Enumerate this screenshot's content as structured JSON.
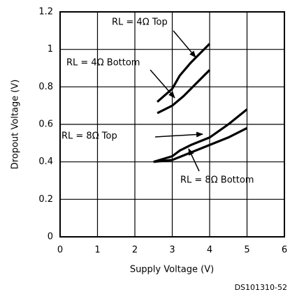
{
  "chart_data": {
    "type": "line",
    "xlabel": "Supply Voltage (V)",
    "ylabel": "Dropout Voltage (V)",
    "footer": "DS101310-52",
    "xlim": [
      0,
      6
    ],
    "xticks": [
      0,
      1,
      2,
      3,
      4,
      5,
      6
    ],
    "ylim": [
      0,
      1.2
    ],
    "yticks": [
      0,
      0.2,
      0.4,
      0.6,
      0.8,
      1,
      1.2
    ],
    "grid": true,
    "color": "#000000",
    "series": [
      {
        "name": "RL = 4Ω Top",
        "x": [
          2.6,
          3.0,
          3.2,
          3.5,
          4.0
        ],
        "values": [
          0.72,
          0.79,
          0.86,
          0.93,
          1.03
        ]
      },
      {
        "name": "RL = 4Ω Bottom",
        "x": [
          2.6,
          3.0,
          3.3,
          3.6,
          4.0
        ],
        "values": [
          0.66,
          0.7,
          0.75,
          0.81,
          0.89
        ]
      },
      {
        "name": "RL = 8Ω Top",
        "x": [
          2.5,
          3.0,
          3.2,
          3.5,
          4.0,
          4.5,
          5.0
        ],
        "values": [
          0.4,
          0.43,
          0.46,
          0.49,
          0.53,
          0.6,
          0.68
        ]
      },
      {
        "name": "RL = 8Ω Bottom",
        "x": [
          2.5,
          3.0,
          3.5,
          4.0,
          4.5,
          5.0
        ],
        "values": [
          0.4,
          0.41,
          0.45,
          0.49,
          0.53,
          0.58
        ]
      }
    ]
  }
}
